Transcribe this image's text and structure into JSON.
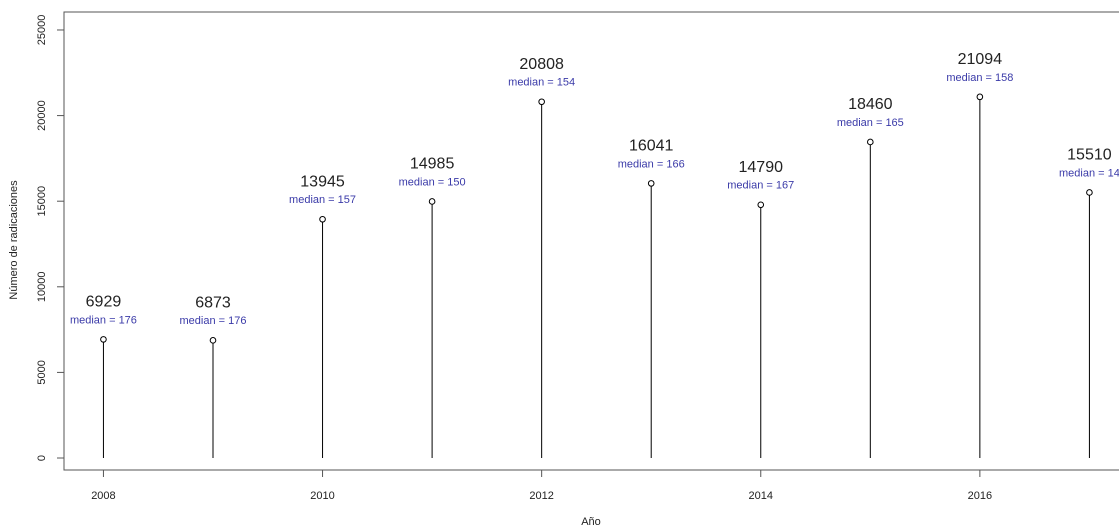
{
  "chart_data": {
    "type": "stem",
    "x_label": "Año",
    "y_label": "Número de radicaciones",
    "x": [
      2008,
      2009,
      2010,
      2011,
      2012,
      2013,
      2014,
      2015,
      2016,
      2017
    ],
    "values": [
      6929,
      6873,
      13945,
      14985,
      20808,
      16041,
      14790,
      18460,
      21094,
      15510
    ],
    "annotations": [
      "median = 176",
      "median = 176",
      "median = 157",
      "median = 150",
      "median = 154",
      "median = 166",
      "median = 167",
      "median = 165",
      "median = 158",
      "median = 14"
    ],
    "color": "#000000",
    "annotation_color": "#3a3aa8",
    "xlim": [
      2007.64,
      2017.27
    ],
    "xticks": [
      2008,
      2010,
      2012,
      2014,
      2016
    ],
    "ylim": [
      -700,
      26050
    ],
    "yticks": [
      0,
      5000,
      10000,
      15000,
      20000,
      25000
    ],
    "grid": false
  }
}
